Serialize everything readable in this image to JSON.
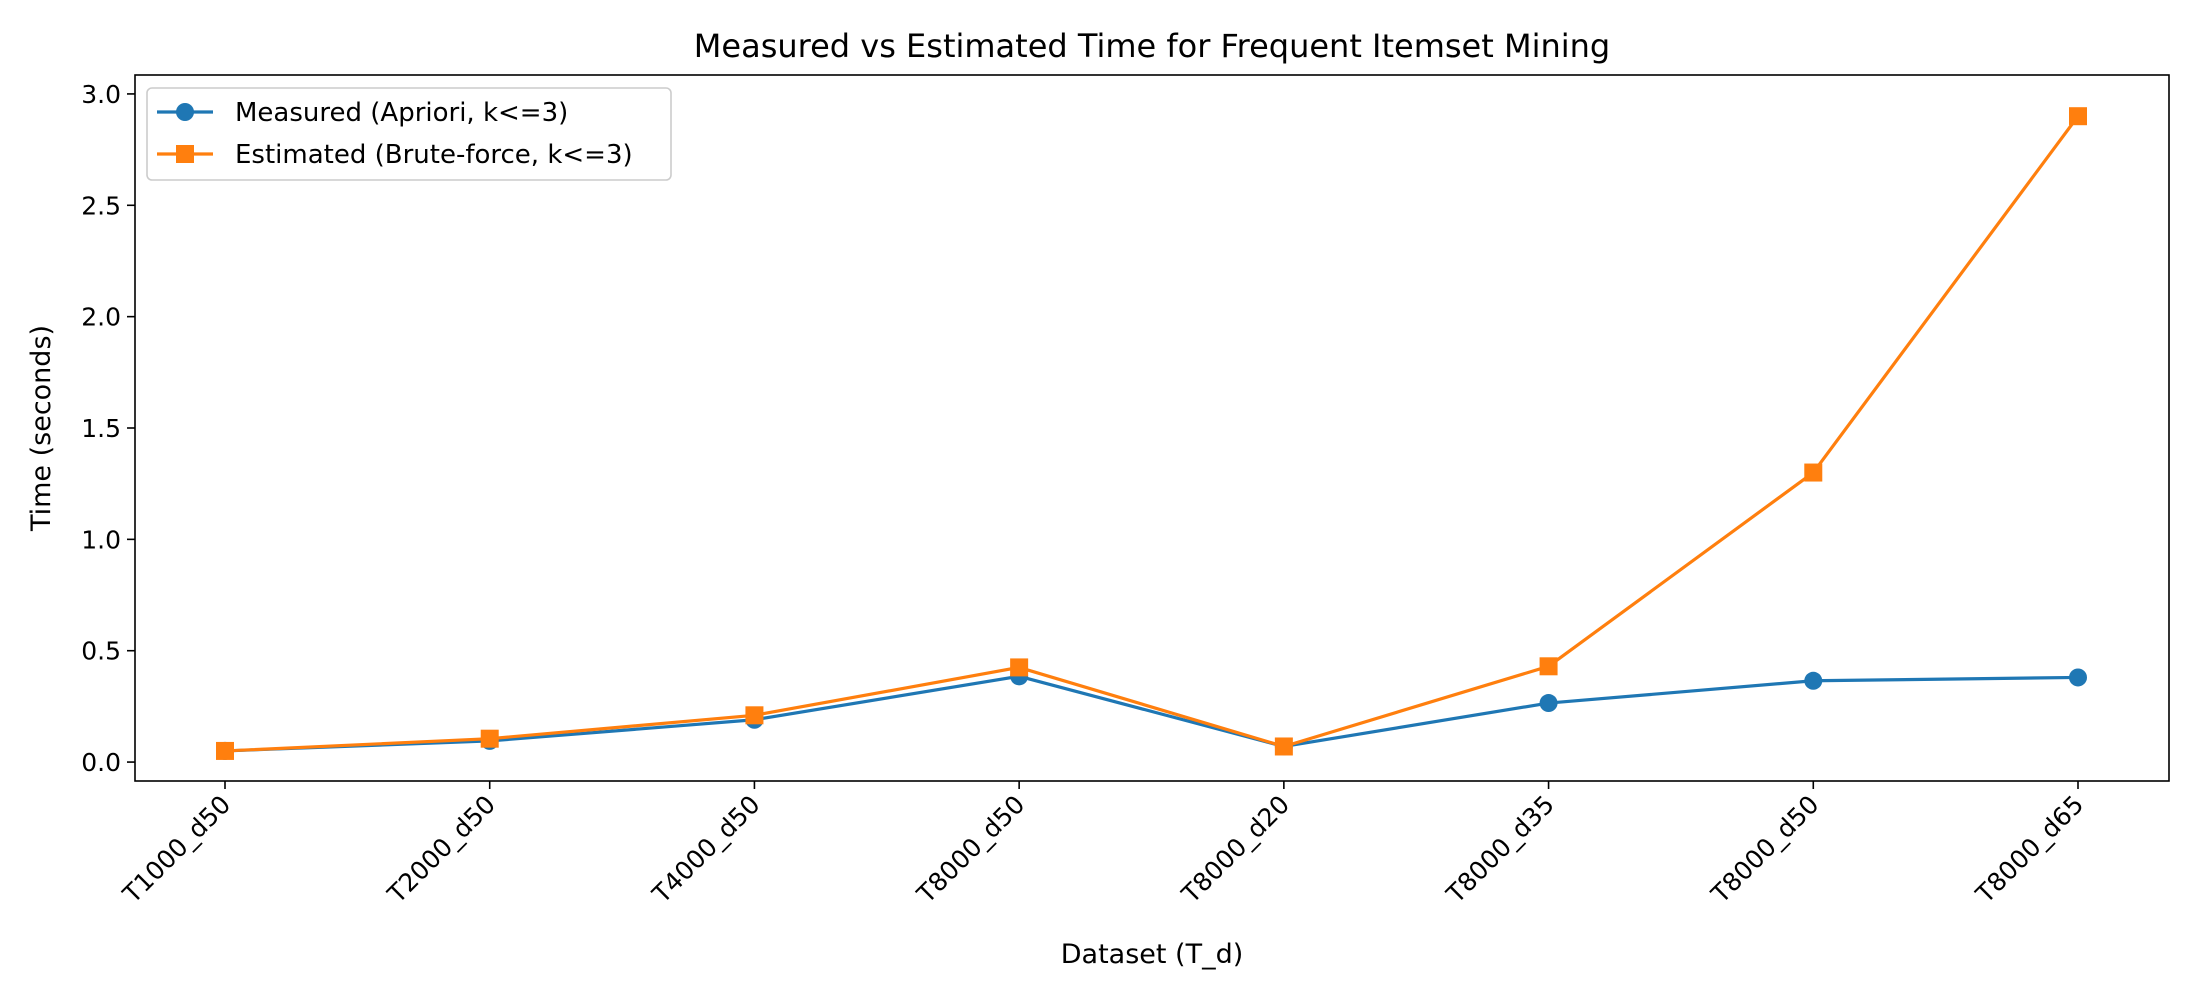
{
  "chart_data": {
    "type": "line",
    "title": "Measured vs Estimated Time for Frequent Itemset Mining",
    "xlabel": "Dataset (T_d)",
    "ylabel": "Time (seconds)",
    "categories": [
      "T1000_d50",
      "T2000_d50",
      "T4000_d50",
      "T8000_d50",
      "T8000_d20",
      "T8000_d35",
      "T8000_d50",
      "T8000_d65"
    ],
    "ylim": [
      -0.085,
      3.085
    ],
    "yticks": [
      "0.0",
      "0.5",
      "1.0",
      "1.5",
      "2.0",
      "2.5",
      "3.0"
    ],
    "grid": false,
    "legend_position": "upper left",
    "series": [
      {
        "name": "Measured (Apriori, k<=3)",
        "color": "#1f77b4",
        "marker": "circle",
        "values": [
          0.05,
          0.095,
          0.19,
          0.385,
          0.07,
          0.265,
          0.365,
          0.38
        ]
      },
      {
        "name": "Estimated (Brute-force, k<=3)",
        "color": "#ff7f0e",
        "marker": "square",
        "values": [
          0.05,
          0.105,
          0.21,
          0.425,
          0.07,
          0.43,
          1.3,
          2.9
        ]
      }
    ]
  }
}
